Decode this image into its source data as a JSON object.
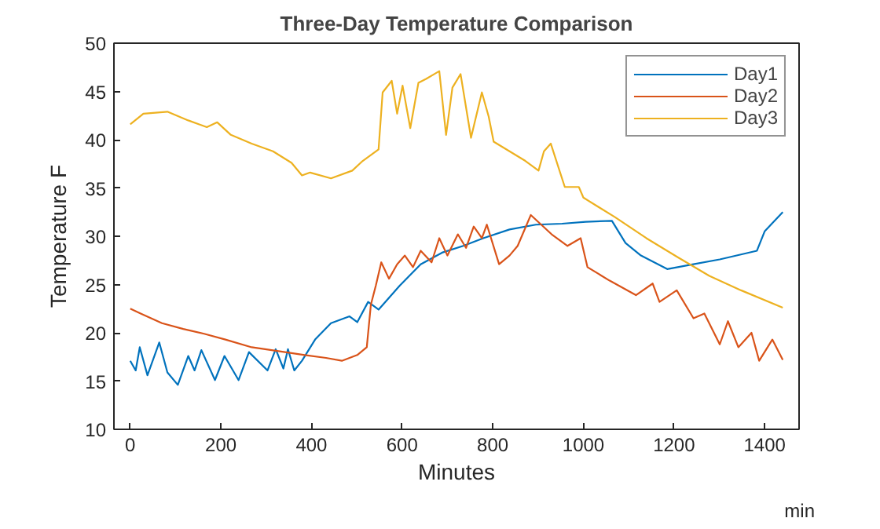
{
  "chart_data": {
    "type": "line",
    "title": "Three-Day Temperature Comparison",
    "xlabel": "Minutes",
    "ylabel": "Temperature F",
    "annotations": [
      "min"
    ],
    "xlim": [
      -36,
      1476
    ],
    "xticks": [
      0,
      200,
      400,
      600,
      800,
      1000,
      1200,
      1400
    ],
    "ylim": [
      10,
      50
    ],
    "yticks": [
      10,
      15,
      20,
      25,
      30,
      35,
      40,
      45,
      50
    ],
    "grid": false,
    "legend": "top right",
    "marker": "none",
    "line_style": "solid",
    "series": [
      {
        "name": "Day1",
        "color": "#0072bd",
        "x": [
          0,
          12,
          21,
          38,
          64,
          82,
          105,
          128,
          142,
          157,
          187,
          208,
          239,
          262,
          303,
          321,
          338,
          348,
          362,
          379,
          408,
          443,
          484,
          501,
          525,
          548,
          595,
          641,
          688,
          735,
          779,
          837,
          895,
          953,
          1005,
          1063,
          1093,
          1127,
          1185,
          1243,
          1301,
          1383,
          1400,
          1440
        ],
        "values": [
          17.1,
          16.1,
          18.5,
          15.6,
          19.0,
          15.9,
          14.6,
          17.6,
          16.1,
          18.2,
          15.1,
          17.6,
          15.1,
          18.0,
          16.1,
          18.3,
          16.3,
          18.3,
          16.1,
          17.1,
          19.3,
          21.0,
          21.7,
          21.1,
          23.2,
          22.4,
          24.9,
          27.1,
          28.3,
          29.0,
          29.8,
          30.7,
          31.2,
          31.3,
          31.5,
          31.6,
          29.3,
          28.0,
          26.6,
          27.1,
          27.6,
          28.5,
          30.5,
          32.5
        ]
      },
      {
        "name": "Day2",
        "color": "#d95319",
        "x": [
          0,
          23,
          70,
          117,
          163,
          210,
          268,
          327,
          385,
          432,
          467,
          501,
          522,
          531,
          542,
          554,
          571,
          589,
          606,
          624,
          641,
          665,
          682,
          700,
          723,
          741,
          758,
          776,
          787,
          814,
          837,
          855,
          884,
          907,
          930,
          965,
          994,
          1009,
          1058,
          1116,
          1153,
          1168,
          1206,
          1243,
          1267,
          1301,
          1319,
          1342,
          1371,
          1388,
          1417,
          1440
        ],
        "values": [
          22.5,
          22.0,
          21.0,
          20.4,
          19.9,
          19.3,
          18.5,
          18.1,
          17.7,
          17.4,
          17.1,
          17.7,
          18.5,
          22.9,
          24.9,
          27.3,
          25.6,
          27.1,
          28.0,
          26.8,
          28.5,
          27.3,
          29.8,
          28.0,
          30.2,
          28.8,
          31.0,
          29.8,
          31.2,
          27.1,
          28.0,
          29.0,
          32.2,
          31.2,
          30.2,
          29.0,
          29.8,
          26.8,
          25.4,
          23.9,
          25.1,
          23.2,
          24.4,
          21.5,
          22.0,
          18.8,
          21.2,
          18.5,
          20.0,
          17.1,
          19.3,
          17.2
        ]
      },
      {
        "name": "Day3",
        "color": "#edb120",
        "x": [
          0,
          29,
          82,
          128,
          169,
          192,
          222,
          268,
          315,
          356,
          379,
          397,
          443,
          490,
          513,
          548,
          557,
          577,
          589,
          601,
          618,
          636,
          653,
          671,
          682,
          697,
          711,
          729,
          752,
          776,
          791,
          802,
          837,
          872,
          901,
          913,
          928,
          959,
          990,
          1000,
          1069,
          1139,
          1209,
          1278,
          1348,
          1440
        ],
        "values": [
          41.6,
          42.7,
          42.9,
          42.0,
          41.3,
          41.8,
          40.5,
          39.6,
          38.8,
          37.6,
          36.3,
          36.6,
          36.0,
          36.8,
          37.8,
          39.0,
          44.9,
          46.1,
          42.7,
          45.6,
          41.2,
          45.9,
          46.3,
          46.8,
          47.1,
          40.5,
          45.4,
          46.8,
          40.2,
          44.9,
          42.4,
          39.8,
          38.8,
          37.8,
          36.8,
          38.8,
          39.6,
          35.1,
          35.1,
          34.0,
          32.0,
          29.8,
          27.8,
          25.9,
          24.4,
          22.6
        ]
      }
    ]
  }
}
